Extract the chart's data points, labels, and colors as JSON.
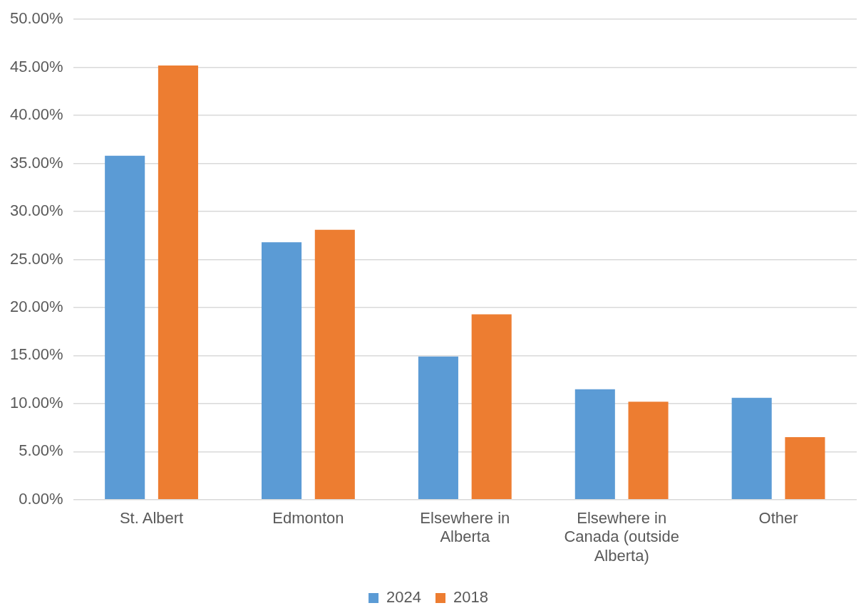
{
  "chart_data": {
    "type": "bar",
    "categories": [
      "St. Albert",
      "Edmonton",
      "Elsewhere in Alberta",
      "Elsewhere in Canada (outside Alberta)",
      "Other"
    ],
    "series": [
      {
        "name": "2024",
        "color": "#5b9bd5",
        "values": [
          35.8,
          26.8,
          14.9,
          11.5,
          10.6
        ]
      },
      {
        "name": "2018",
        "color": "#ed7d31",
        "values": [
          45.2,
          28.1,
          19.3,
          10.2,
          6.5
        ]
      }
    ],
    "ylim": [
      0,
      50
    ],
    "yticks": [
      {
        "value": 0,
        "label": "0.00%"
      },
      {
        "value": 5,
        "label": "5.00%"
      },
      {
        "value": 10,
        "label": "10.00%"
      },
      {
        "value": 15,
        "label": "15.00%"
      },
      {
        "value": 20,
        "label": "20.00%"
      },
      {
        "value": 25,
        "label": "25.00%"
      },
      {
        "value": 30,
        "label": "30.00%"
      },
      {
        "value": 35,
        "label": "35.00%"
      },
      {
        "value": 40,
        "label": "40.00%"
      },
      {
        "value": 45,
        "label": "45.00%"
      },
      {
        "value": 50,
        "label": "50.00%"
      }
    ],
    "grid": "y",
    "legend": "bottom"
  }
}
